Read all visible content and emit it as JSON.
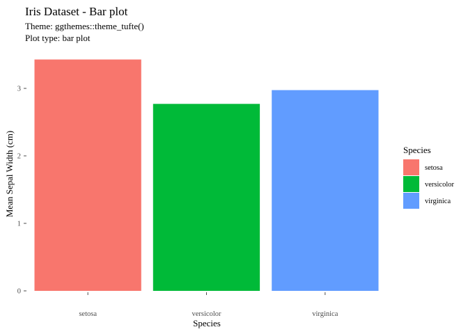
{
  "chart_data": {
    "type": "bar",
    "title": "Iris Dataset - Bar plot",
    "subtitle": [
      "Theme: ggthemes::theme_tufte()",
      "Plot type: bar plot"
    ],
    "xlabel": "Species",
    "ylabel": "Mean Sepal Width (cm)",
    "categories": [
      "setosa",
      "versicolor",
      "virginica"
    ],
    "values": [
      3.428,
      2.77,
      2.974
    ],
    "colors": [
      "#F8766D",
      "#00BA38",
      "#619CFF"
    ],
    "ylim": [
      0,
      3.6
    ],
    "yticks": [
      0,
      1,
      2,
      3
    ],
    "grid": false,
    "legend": {
      "title": "Species",
      "placement": "right",
      "entries": [
        "setosa",
        "versicolor",
        "virginica"
      ]
    }
  }
}
